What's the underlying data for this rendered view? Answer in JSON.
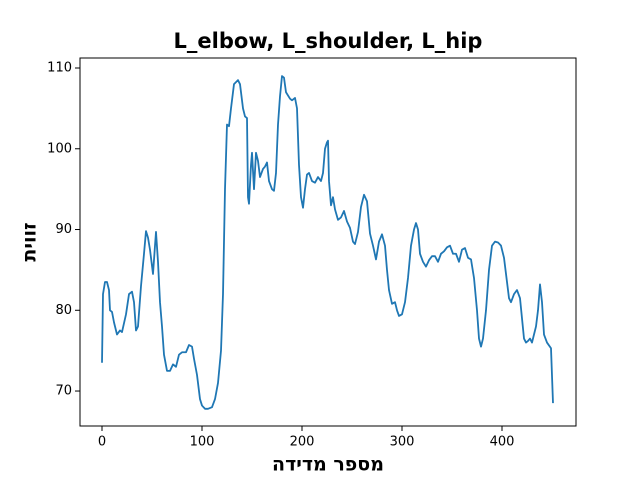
{
  "chart_data": {
    "type": "line",
    "title": "L_elbow, L_shoulder, L_hip",
    "x_label": "מספר מדידה",
    "y_label": "זווית",
    "xlim": [
      -22,
      474
    ],
    "ylim": [
      65.67,
      111.24
    ],
    "xticks": [
      0,
      100,
      200,
      300,
      400
    ],
    "yticks": [
      70,
      80,
      90,
      100,
      110
    ],
    "series": [
      {
        "color": "#1f77b4",
        "x": [
          0,
          1,
          3,
          5,
          7,
          8,
          10,
          12,
          15,
          18,
          20,
          24,
          27,
          30,
          32,
          34,
          36,
          39,
          42,
          44,
          46,
          48,
          51,
          53,
          54,
          56,
          58,
          60,
          62,
          65,
          68,
          71,
          74,
          77,
          80,
          84,
          87,
          90,
          92,
          95,
          98,
          100,
          103,
          106,
          110,
          113,
          116,
          119,
          121,
          123,
          125,
          127,
          129,
          132,
          136,
          138,
          141,
          143,
          145,
          146,
          147,
          149,
          150,
          152,
          154,
          156,
          158,
          161,
          163,
          165,
          167,
          170,
          172,
          174,
          176,
          178,
          180,
          182,
          184,
          188,
          190,
          193,
          195,
          197,
          199,
          201,
          203,
          205,
          207,
          210,
          213,
          216,
          219,
          221,
          223,
          225,
          226,
          227,
          229,
          231,
          233,
          236,
          239,
          242,
          245,
          248,
          251,
          253,
          256,
          259,
          262,
          265,
          268,
          271,
          274,
          277,
          280,
          283,
          285,
          287,
          290,
          293,
          295,
          297,
          300,
          303,
          306,
          309,
          312,
          314,
          316,
          318,
          321,
          324,
          327,
          330,
          333,
          336,
          339,
          342,
          345,
          348,
          351,
          354,
          357,
          360,
          363,
          366,
          369,
          372,
          375,
          377,
          379,
          381,
          384,
          387,
          390,
          393,
          396,
          399,
          402,
          405,
          407,
          409,
          412,
          415,
          418,
          420,
          422,
          424,
          426,
          428,
          430,
          432,
          434,
          436,
          438,
          440,
          442,
          445,
          449,
          451
        ],
        "values": [
          73.5,
          82,
          83.5,
          83.5,
          82.5,
          80,
          79.8,
          78.5,
          77,
          77.5,
          77.3,
          79.5,
          82,
          82.3,
          81,
          77.5,
          78,
          83,
          87,
          89.8,
          89,
          87.5,
          84.5,
          88,
          89.7,
          86,
          81,
          78,
          74.5,
          72.5,
          72.5,
          73.3,
          73,
          74.5,
          74.8,
          74.8,
          75.7,
          75.5,
          74,
          72,
          69,
          68.2,
          67.8,
          67.8,
          68,
          69,
          71,
          75,
          82,
          95,
          103,
          102.8,
          105,
          108,
          108.5,
          108,
          105,
          104,
          103.8,
          94,
          93.2,
          98,
          99.5,
          95,
          99.5,
          98.5,
          96.5,
          97.5,
          97.8,
          98.3,
          96,
          95,
          94.8,
          97,
          103,
          106.5,
          109,
          108.8,
          107,
          106.2,
          106,
          106.3,
          105,
          98,
          94,
          92.7,
          95,
          96.8,
          97,
          96,
          95.8,
          96.5,
          96,
          97,
          100,
          100.8,
          101,
          96,
          93,
          94,
          92.5,
          91.2,
          91.5,
          92.3,
          91,
          90.2,
          88.5,
          88.2,
          89.7,
          92.8,
          94.3,
          93.5,
          89.5,
          88,
          86.3,
          88.5,
          89.4,
          88,
          85,
          82.5,
          80.8,
          81,
          80,
          79.3,
          79.5,
          81,
          84,
          88,
          90,
          90.8,
          90,
          87,
          86,
          85.4,
          86.2,
          86.7,
          86.7,
          86,
          87,
          87.3,
          87.8,
          88,
          87,
          87,
          86,
          87.5,
          87.7,
          86.5,
          86.3,
          84,
          80,
          76.5,
          75.5,
          76.5,
          80,
          85,
          88,
          88.5,
          88.4,
          88,
          86.5,
          83.5,
          81.5,
          81,
          82,
          82.5,
          81.5,
          79,
          76.5,
          76,
          76.2,
          76.5,
          76,
          77,
          78,
          80,
          83.2,
          81,
          77,
          76,
          75.3,
          68.5
        ]
      }
    ]
  }
}
